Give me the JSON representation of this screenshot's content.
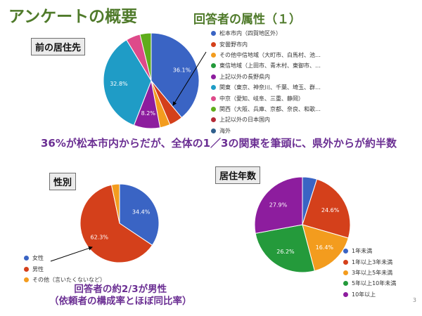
{
  "slide": {
    "title": "アンケートの概要",
    "subtitle": "回答者の属性（１）",
    "page_number": "3",
    "summary_residence": "36%が松本市内からだが、全体の1／3の関東を筆頭に、県外からが約半数",
    "summary_gender_line1": "回答者の約2/3が男性",
    "summary_gender_line2": "（依頼者の構成率とほぼ同比率）"
  },
  "sections": {
    "residence_label": "前の居住先",
    "gender_label": "性別",
    "years_label": "居住年数"
  },
  "chart_data": [
    {
      "type": "pie",
      "name": "residence",
      "start_angle_deg": 90,
      "direction": "clockwise",
      "legend_position": "right",
      "slices": [
        {
          "label": "松本市内（四賀地区外）",
          "value": 36.1,
          "color": "#3a64c4",
          "data_label": "36.1%"
        },
        {
          "label": "安曇野市内",
          "value": 4.2,
          "color": "#d4401b",
          "data_label": ""
        },
        {
          "label": "その他中信地域（大町市、白馬村、池…",
          "value": 3.2,
          "color": "#f39c1e",
          "data_label": ""
        },
        {
          "label": "東信地域（上田市、青木村、東御市、…",
          "value": 0.0,
          "color": "#249a3b",
          "data_label": ""
        },
        {
          "label": "上記以外の長野県内",
          "value": 8.2,
          "color": "#8d1d9e",
          "data_label": "8.2%"
        },
        {
          "label": "関東（東京、神奈川、千葉、埼玉、群…",
          "value": 32.8,
          "color": "#1f9cc6",
          "data_label": "32.8%"
        },
        {
          "label": "中京（愛知、岐阜、三重、静岡）",
          "value": 4.5,
          "color": "#de4a8a",
          "data_label": ""
        },
        {
          "label": "関西（大阪、兵庫、京都、奈良、和歌…",
          "value": 3.5,
          "color": "#5fad1c",
          "data_label": ""
        },
        {
          "label": "上記以外の日本国内",
          "value": 0.0,
          "color": "#b52b37",
          "data_label": ""
        },
        {
          "label": "海外",
          "value": 0.0,
          "color": "#2f5f8c",
          "data_label": ""
        }
      ]
    },
    {
      "type": "pie",
      "name": "gender",
      "start_angle_deg": 90,
      "direction": "clockwise",
      "legend_position": "bottom-left",
      "slices": [
        {
          "label": "女性",
          "value": 34.4,
          "color": "#3a64c4",
          "data_label": "34.4%"
        },
        {
          "label": "男性",
          "value": 62.3,
          "color": "#d4401b",
          "data_label": "62.3%"
        },
        {
          "label": "その他（言いたくないなど）",
          "value": 3.3,
          "color": "#f39c1e",
          "data_label": ""
        }
      ]
    },
    {
      "type": "pie",
      "name": "years",
      "start_angle_deg": 90,
      "direction": "clockwise",
      "legend_position": "right",
      "slices": [
        {
          "label": "1年未満",
          "value": 4.9,
          "color": "#3a64c4",
          "data_label": ""
        },
        {
          "label": "1年以上3年未満",
          "value": 24.6,
          "color": "#d4401b",
          "data_label": "24.6%"
        },
        {
          "label": "3年以上5年未満",
          "value": 16.4,
          "color": "#f39c1e",
          "data_label": "16.4%"
        },
        {
          "label": "5年以上10年未満",
          "value": 26.2,
          "color": "#249a3b",
          "data_label": "26.2%"
        },
        {
          "label": "10年以上",
          "value": 27.9,
          "color": "#8d1d9e",
          "data_label": "27.9%"
        }
      ]
    }
  ]
}
